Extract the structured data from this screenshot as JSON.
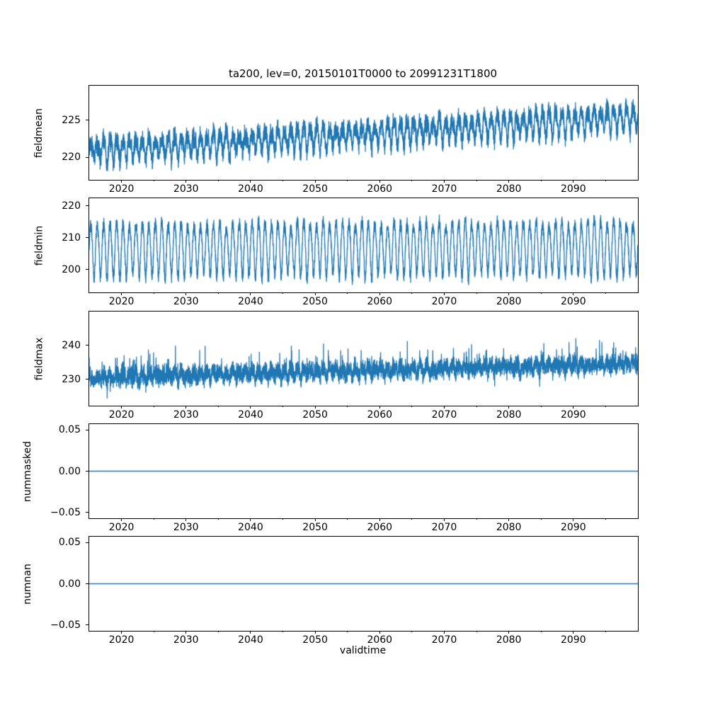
{
  "figure": {
    "background": "#ffffff",
    "spine_color": "#000000",
    "text_color": "#000000"
  },
  "chart_data": {
    "type": "line",
    "title": "ta200, lev=0, 20150101T0000 to 20991231T1800",
    "xlabel": "validtime",
    "line_color": "#1f77b4",
    "grid": false,
    "legend": "none",
    "x_axis": {
      "range": [
        2015,
        2100
      ],
      "ticks_major": [
        2020,
        2030,
        2040,
        2050,
        2060,
        2070,
        2080,
        2090
      ],
      "tick_labels": [
        "2020",
        "2030",
        "2040",
        "2050",
        "2060",
        "2070",
        "2080",
        "2090"
      ],
      "ticks_minor": [
        2025,
        2035,
        2045,
        2055,
        2065,
        2075,
        2085,
        2095
      ]
    },
    "subplots": [
      {
        "ylabel": "fieldmean",
        "ylim": [
          217.0,
          229.6
        ],
        "yticks": [
          {
            "v": 220,
            "label": "220"
          },
          {
            "v": 225,
            "label": "225"
          }
        ],
        "summary": {
          "description": "6-hourly field mean, noisy annual cycle with rising trend",
          "start_level": 220.9,
          "end_level": 225.4,
          "approx_min": 217.5,
          "approx_max": 228.8
        },
        "synth": {
          "seed": 7,
          "base_start": 220.9,
          "base_end": 225.4,
          "season_amp": 1.35,
          "amp_jitter": 0.45,
          "semi_amp": 0.4,
          "noise_amp": 1.0,
          "spike_prob": 0,
          "spike_amp": 0,
          "points_per_year": 64
        },
        "line_width": 1.3
      },
      {
        "ylabel": "fieldmin",
        "ylim": [
          192.9,
          222.4
        ],
        "yticks": [
          {
            "v": 200,
            "label": "200"
          },
          {
            "v": 210,
            "label": "210"
          },
          {
            "v": 220,
            "label": "220"
          }
        ],
        "summary": {
          "description": "6-hourly field minimum, strong stationary annual cycle",
          "start_level": 206.6,
          "end_level": 207.2,
          "approx_min": 195.0,
          "approx_max": 220.0
        },
        "synth": {
          "seed": 11,
          "base_start": 206.6,
          "base_end": 207.2,
          "season_amp": 8.1,
          "amp_jitter": 1.2,
          "semi_amp": 0.8,
          "noise_amp": 1.6,
          "spike_prob": 0,
          "spike_amp": 0,
          "points_per_year": 64
        },
        "line_width": 1.3
      },
      {
        "ylabel": "fieldmax",
        "ylim": [
          222.2,
          249.9
        ],
        "yticks": [
          {
            "v": 230,
            "label": "230"
          },
          {
            "v": 240,
            "label": "240"
          }
        ],
        "summary": {
          "description": "6-hourly field maximum, noisy band with upward spikes and slight rising trend",
          "start_level": 230.3,
          "end_level": 234.6,
          "approx_min": 223.5,
          "approx_max": 248.0
        },
        "synth": {
          "seed": 23,
          "base_start": 230.3,
          "base_end": 234.6,
          "season_amp": 1.0,
          "amp_jitter": 0.4,
          "semi_amp": 0.4,
          "noise_amp": 2.0,
          "spike_prob": 0.05,
          "spike_amp": 6.5,
          "points_per_year": 64
        },
        "line_width": 1.3
      },
      {
        "ylabel": "nummasked",
        "ylim": [
          -0.057,
          0.057
        ],
        "yticks": [
          {
            "v": -0.05,
            "label": "−0.05"
          },
          {
            "v": 0,
            "label": "0.00"
          },
          {
            "v": 0.05,
            "label": "0.05"
          }
        ],
        "summary": {
          "description": "number of masked points, constant zero",
          "constant_value": 0
        },
        "synth": {
          "seed": 1,
          "base_start": 0,
          "base_end": 0,
          "season_amp": 0,
          "amp_jitter": 0,
          "semi_amp": 0,
          "noise_amp": 0,
          "spike_prob": 0,
          "spike_amp": 0,
          "points_per_year": 4
        },
        "line_width": 1.5
      },
      {
        "ylabel": "numnan",
        "ylim": [
          -0.057,
          0.057
        ],
        "yticks": [
          {
            "v": -0.05,
            "label": "−0.05"
          },
          {
            "v": 0,
            "label": "0.00"
          },
          {
            "v": 0.05,
            "label": "0.05"
          }
        ],
        "summary": {
          "description": "number of NaN points, constant zero",
          "constant_value": 0
        },
        "synth": {
          "seed": 2,
          "base_start": 0,
          "base_end": 0,
          "season_amp": 0,
          "amp_jitter": 0,
          "semi_amp": 0,
          "noise_amp": 0,
          "spike_prob": 0,
          "spike_amp": 0,
          "points_per_year": 4
        },
        "line_width": 1.5
      }
    ]
  }
}
